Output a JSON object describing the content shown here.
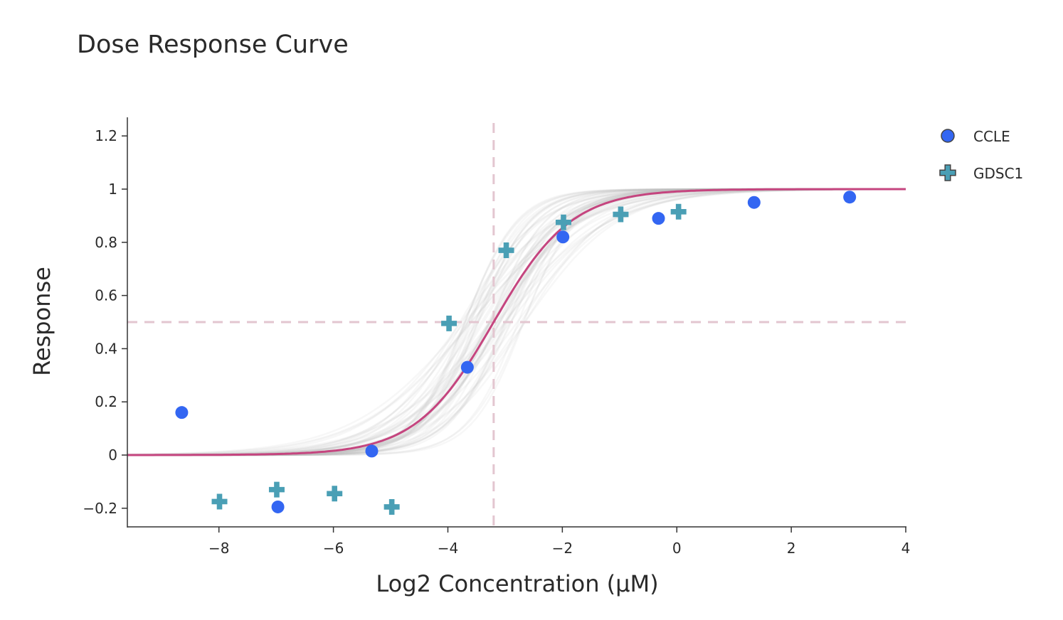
{
  "chart_data": {
    "type": "scatter",
    "title": "Dose Response Curve",
    "xlabel": "Log2 Concentration (µM)",
    "ylabel": "Response",
    "xlim": [
      -9.6,
      4
    ],
    "ylim": [
      -0.27,
      1.27
    ],
    "x_ticks": [
      -8,
      -6,
      -4,
      -2,
      0,
      2,
      4
    ],
    "x_tick_labels": [
      "−8",
      "−6",
      "−4",
      "−2",
      "0",
      "2",
      "4"
    ],
    "y_ticks": [
      -0.2,
      0,
      0.2,
      0.4,
      0.6,
      0.8,
      1,
      1.2
    ],
    "y_tick_labels": [
      "−0.2",
      "0",
      "0.2",
      "0.4",
      "0.6",
      "0.8",
      "1",
      "1.2"
    ],
    "grid": false,
    "legend_position": "top-right",
    "series": [
      {
        "name": "CCLE",
        "marker": "circle",
        "color": "#3366f2",
        "x": [
          -8.65,
          -6.97,
          -5.33,
          -3.66,
          -1.99,
          -0.32,
          1.35,
          3.02
        ],
        "y": [
          0.16,
          -0.195,
          0.015,
          0.33,
          0.82,
          0.89,
          0.95,
          0.97
        ]
      },
      {
        "name": "GDSC1",
        "marker": "cross",
        "color": "#4a9fb5",
        "x": [
          -7.99,
          -6.99,
          -5.98,
          -4.98,
          -3.98,
          -2.98,
          -1.98,
          -0.98,
          0.03
        ],
        "y": [
          -0.175,
          -0.13,
          -0.145,
          -0.195,
          0.495,
          0.77,
          0.875,
          0.905,
          0.915
        ]
      }
    ],
    "fit_curve": {
      "model": "sigmoid",
      "ec50": -3.2,
      "slope": 1.05,
      "bottom": 0,
      "top": 1,
      "color": "#c5457f"
    },
    "bootstrap_curves": {
      "count": 60,
      "ec50_range": [
        -3.8,
        -2.6
      ],
      "slope_range": [
        0.7,
        1.6
      ],
      "color": "#bbbbbb"
    },
    "reference_lines": {
      "vertical_x": -3.2,
      "horizontal_y": 0.5,
      "color": "#e3c6d0",
      "style": "dashed"
    }
  }
}
